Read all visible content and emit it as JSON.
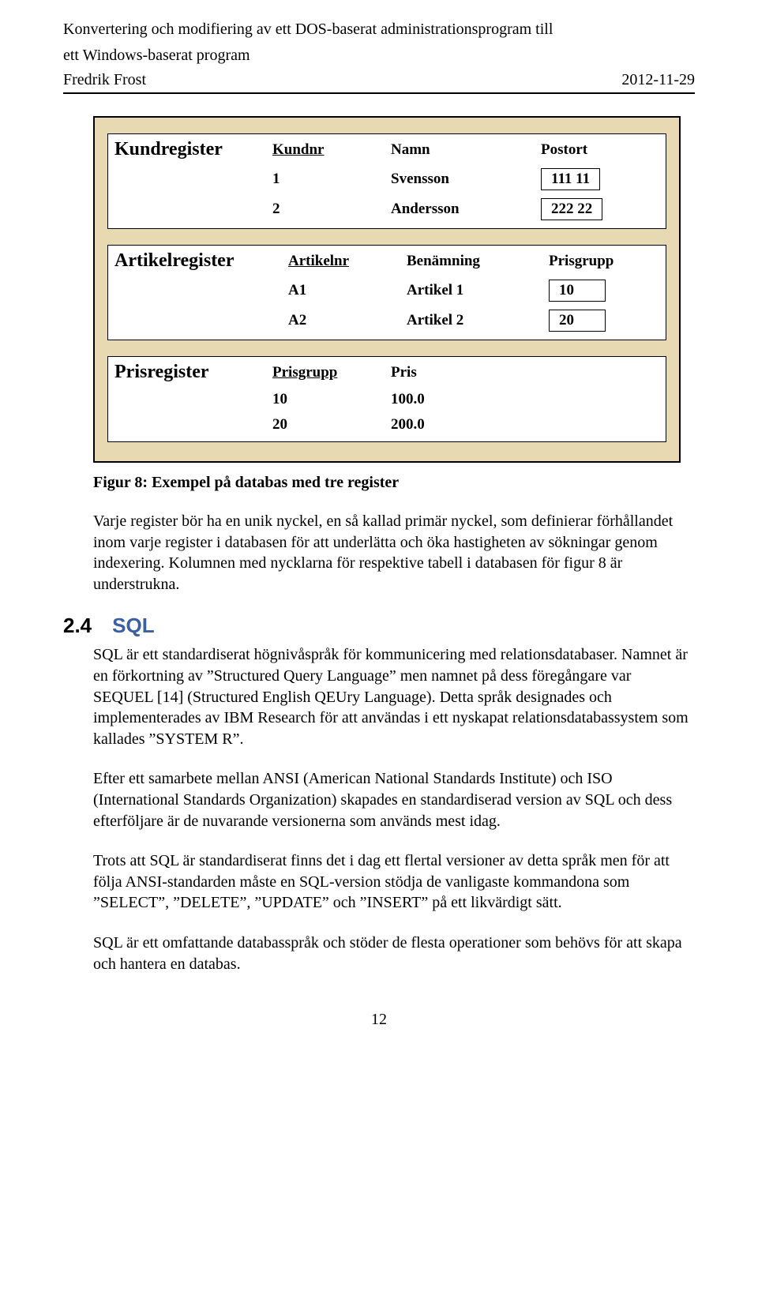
{
  "header": {
    "title_line1": "Konvertering och modifiering av ett DOS-baserat administrationsprogram till",
    "title_line2": "ett Windows-baserat program",
    "author": "Fredrik Frost",
    "date": "2012-11-29"
  },
  "diagram": {
    "background": "#e7d9b1",
    "kund": {
      "title": "Kundregister",
      "headers": [
        "Kundnr",
        "Namn",
        "Postort"
      ],
      "rows": [
        {
          "c1": "1",
          "c2": "Svensson",
          "c3": "111 11"
        },
        {
          "c1": "2",
          "c2": "Andersson",
          "c3": "222 22"
        }
      ]
    },
    "artikel": {
      "title": "Artikelregister",
      "headers": [
        "Artikelnr",
        "Benämning",
        "Prisgrupp"
      ],
      "rows": [
        {
          "c1": "A1",
          "c2": "Artikel 1",
          "c3": "10"
        },
        {
          "c1": "A2",
          "c2": "Artikel 2",
          "c3": "20"
        }
      ]
    },
    "pris": {
      "title": "Prisregister",
      "headers": [
        "Prisgrupp",
        "Pris"
      ],
      "rows": [
        {
          "c1": "10",
          "c2": "100.0"
        },
        {
          "c1": "20",
          "c2": "200.0"
        }
      ]
    }
  },
  "figcaption": "Figur 8: Exempel på databas med tre register",
  "para_intro": "Varje register bör ha en unik nyckel, en så kallad primär nyckel, som definierar förhållandet inom varje register i databasen för att underlätta och öka hastigheten av sökningar genom indexering. Kolumnen med nycklarna för respektive tabell i databasen för figur 8 är understrukna.",
  "section": {
    "num": "2.4",
    "title": "SQL"
  },
  "para_sql1": "SQL är ett standardiserat högnivåspråk för kommunicering med relationsdatabaser. Namnet är en förkortning av ”Structured Query Language” men namnet på dess föregångare var SEQUEL [14] (Structured English QEUry Language). Detta språk designades och implementerades av IBM Research för att användas i ett nyskapat relationsdatabassystem som kallades ”SYSTEM R”.",
  "para_sql2": "Efter ett samarbete mellan ANSI (American National Standards Institute) och ISO (International Standards Organization) skapades en standardiserad version av SQL och dess efterföljare är de nuvarande versionerna som används mest idag.",
  "para_sql3": "Trots att SQL är standardiserat finns det i dag ett flertal versioner av detta språk men för att följa ANSI-standarden måste en SQL-version stödja de vanligaste kommandona som ”SELECT”, ”DELETE”, ”UPDATE” och ”INSERT” på ett likvärdigt sätt.",
  "para_sql4": "SQL är ett omfattande databasspråk och stöder de flesta operationer som behövs för att skapa och hantera en databas.",
  "pagenum": "12"
}
